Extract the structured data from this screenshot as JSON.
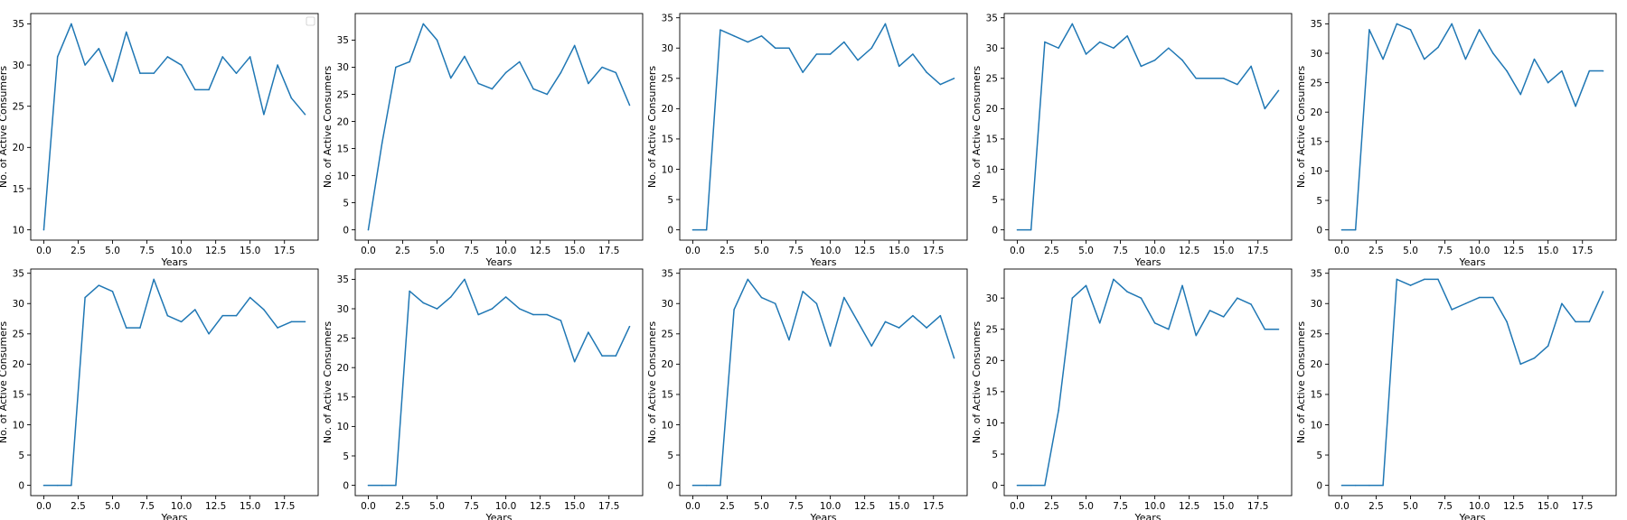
{
  "figure": {
    "line_color": "#1f77b4",
    "axes_color": "#000000",
    "background": "#ffffff"
  },
  "chart_data": [
    {
      "type": "line",
      "xlabel": "Years",
      "ylabel": "No. of Active Consumers",
      "xlim": [
        -0.95,
        19.95
      ],
      "ylim": [
        8.75,
        36.25
      ],
      "xticks": [
        0.0,
        2.5,
        5.0,
        7.5,
        10.0,
        12.5,
        15.0,
        17.5
      ],
      "xtick_labels": [
        "0.0",
        "2.5",
        "5.0",
        "7.5",
        "10.0",
        "12.5",
        "15.0",
        "17.5"
      ],
      "yticks": [
        10,
        15,
        20,
        25,
        30,
        35
      ],
      "ytick_labels": [
        "10",
        "15",
        "20",
        "25",
        "30",
        "35"
      ],
      "legend": {
        "placement": "upper right",
        "entries": []
      },
      "grid": false,
      "x": [
        0,
        1,
        2,
        3,
        4,
        5,
        6,
        7,
        8,
        9,
        10,
        11,
        12,
        13,
        14,
        15,
        16,
        17,
        18,
        19
      ],
      "y": [
        10,
        31,
        35,
        30,
        32,
        28,
        34,
        29,
        29,
        31,
        30,
        27,
        27,
        31,
        29,
        31,
        24,
        30,
        26,
        24
      ]
    },
    {
      "type": "line",
      "xlabel": "Years",
      "ylabel": "No. of Active Consumers",
      "xlim": [
        -0.95,
        19.95
      ],
      "ylim": [
        -1.9,
        39.9
      ],
      "xticks": [
        0.0,
        2.5,
        5.0,
        7.5,
        10.0,
        12.5,
        15.0,
        17.5
      ],
      "xtick_labels": [
        "0.0",
        "2.5",
        "5.0",
        "7.5",
        "10.0",
        "12.5",
        "15.0",
        "17.5"
      ],
      "yticks": [
        0,
        5,
        10,
        15,
        20,
        25,
        30,
        35
      ],
      "ytick_labels": [
        "0",
        "5",
        "10",
        "15",
        "20",
        "25",
        "30",
        "35"
      ],
      "grid": false,
      "x": [
        0,
        1,
        2,
        3,
        4,
        5,
        6,
        7,
        8,
        9,
        10,
        11,
        12,
        13,
        14,
        15,
        16,
        17,
        18,
        19
      ],
      "y": [
        0,
        16,
        30,
        31,
        38,
        35,
        28,
        32,
        27,
        26,
        29,
        31,
        26,
        25,
        29,
        34,
        27,
        30,
        29,
        23
      ]
    },
    {
      "type": "line",
      "xlabel": "Years",
      "ylabel": "No. of Active Consumers",
      "xlim": [
        -0.95,
        19.95
      ],
      "ylim": [
        -1.7,
        35.7
      ],
      "xticks": [
        0.0,
        2.5,
        5.0,
        7.5,
        10.0,
        12.5,
        15.0,
        17.5
      ],
      "xtick_labels": [
        "0.0",
        "2.5",
        "5.0",
        "7.5",
        "10.0",
        "12.5",
        "15.0",
        "17.5"
      ],
      "yticks": [
        0,
        5,
        10,
        15,
        20,
        25,
        30,
        35
      ],
      "ytick_labels": [
        "0",
        "5",
        "10",
        "15",
        "20",
        "25",
        "30",
        "35"
      ],
      "grid": false,
      "x": [
        0,
        1,
        2,
        3,
        4,
        5,
        6,
        7,
        8,
        9,
        10,
        11,
        12,
        13,
        14,
        15,
        16,
        17,
        18,
        19
      ],
      "y": [
        0,
        0,
        33,
        32,
        31,
        32,
        30,
        30,
        26,
        29,
        29,
        31,
        28,
        30,
        34,
        27,
        29,
        26,
        24,
        25
      ]
    },
    {
      "type": "line",
      "xlabel": "Years",
      "ylabel": "No. of Active Consumers",
      "xlim": [
        -0.95,
        19.95
      ],
      "ylim": [
        -1.7,
        35.7
      ],
      "xticks": [
        0.0,
        2.5,
        5.0,
        7.5,
        10.0,
        12.5,
        15.0,
        17.5
      ],
      "xtick_labels": [
        "0.0",
        "2.5",
        "5.0",
        "7.5",
        "10.0",
        "12.5",
        "15.0",
        "17.5"
      ],
      "yticks": [
        0,
        5,
        10,
        15,
        20,
        25,
        30,
        35
      ],
      "ytick_labels": [
        "0",
        "5",
        "10",
        "15",
        "20",
        "25",
        "30",
        "35"
      ],
      "grid": false,
      "x": [
        0,
        1,
        2,
        3,
        4,
        5,
        6,
        7,
        8,
        9,
        10,
        11,
        12,
        13,
        14,
        15,
        16,
        17,
        18,
        19
      ],
      "y": [
        0,
        0,
        31,
        30,
        34,
        29,
        31,
        30,
        32,
        27,
        28,
        30,
        28,
        25,
        25,
        25,
        24,
        27,
        20,
        23
      ]
    },
    {
      "type": "line",
      "xlabel": "Years",
      "ylabel": "No. of Active Consumers",
      "xlim": [
        -0.95,
        19.95
      ],
      "ylim": [
        -1.75,
        36.75
      ],
      "xticks": [
        0.0,
        2.5,
        5.0,
        7.5,
        10.0,
        12.5,
        15.0,
        17.5
      ],
      "xtick_labels": [
        "0.0",
        "2.5",
        "5.0",
        "7.5",
        "10.0",
        "12.5",
        "15.0",
        "17.5"
      ],
      "yticks": [
        0,
        5,
        10,
        15,
        20,
        25,
        30,
        35
      ],
      "ytick_labels": [
        "0",
        "5",
        "10",
        "15",
        "20",
        "25",
        "30",
        "35"
      ],
      "grid": false,
      "x": [
        0,
        1,
        2,
        3,
        4,
        5,
        6,
        7,
        8,
        9,
        10,
        11,
        12,
        13,
        14,
        15,
        16,
        17,
        18,
        19
      ],
      "y": [
        0,
        0,
        34,
        29,
        35,
        34,
        29,
        31,
        35,
        29,
        34,
        30,
        27,
        23,
        29,
        25,
        27,
        21,
        27,
        27
      ]
    },
    {
      "type": "line",
      "xlabel": "Years",
      "ylabel": "No. of Active Consumers",
      "xlim": [
        -0.95,
        19.95
      ],
      "ylim": [
        -1.7,
        35.7
      ],
      "xticks": [
        0.0,
        2.5,
        5.0,
        7.5,
        10.0,
        12.5,
        15.0,
        17.5
      ],
      "xtick_labels": [
        "0.0",
        "2.5",
        "5.0",
        "7.5",
        "10.0",
        "12.5",
        "15.0",
        "17.5"
      ],
      "yticks": [
        0,
        5,
        10,
        15,
        20,
        25,
        30,
        35
      ],
      "ytick_labels": [
        "0",
        "5",
        "10",
        "15",
        "20",
        "25",
        "30",
        "35"
      ],
      "grid": false,
      "x": [
        0,
        1,
        2,
        3,
        4,
        5,
        6,
        7,
        8,
        9,
        10,
        11,
        12,
        13,
        14,
        15,
        16,
        17,
        18,
        19
      ],
      "y": [
        0,
        0,
        0,
        31,
        33,
        32,
        26,
        26,
        34,
        28,
        27,
        29,
        25,
        28,
        28,
        31,
        29,
        26,
        27,
        27
      ]
    },
    {
      "type": "line",
      "xlabel": "Years",
      "ylabel": "No. of Active Consumers",
      "xlim": [
        -0.95,
        19.95
      ],
      "ylim": [
        -1.75,
        36.75
      ],
      "xticks": [
        0.0,
        2.5,
        5.0,
        7.5,
        10.0,
        12.5,
        15.0,
        17.5
      ],
      "xtick_labels": [
        "0.0",
        "2.5",
        "5.0",
        "7.5",
        "10.0",
        "12.5",
        "15.0",
        "17.5"
      ],
      "yticks": [
        0,
        5,
        10,
        15,
        20,
        25,
        30,
        35
      ],
      "ytick_labels": [
        "0",
        "5",
        "10",
        "15",
        "20",
        "25",
        "30",
        "35"
      ],
      "grid": false,
      "x": [
        0,
        1,
        2,
        3,
        4,
        5,
        6,
        7,
        8,
        9,
        10,
        11,
        12,
        13,
        14,
        15,
        16,
        17,
        18,
        19
      ],
      "y": [
        0,
        0,
        0,
        33,
        31,
        30,
        32,
        35,
        29,
        30,
        32,
        30,
        29,
        29,
        28,
        21,
        26,
        22,
        22,
        27
      ]
    },
    {
      "type": "line",
      "xlabel": "Years",
      "ylabel": "No. of Active Consumers",
      "xlim": [
        -0.95,
        19.95
      ],
      "ylim": [
        -1.7,
        35.7
      ],
      "xticks": [
        0.0,
        2.5,
        5.0,
        7.5,
        10.0,
        12.5,
        15.0,
        17.5
      ],
      "xtick_labels": [
        "0.0",
        "2.5",
        "5.0",
        "7.5",
        "10.0",
        "12.5",
        "15.0",
        "17.5"
      ],
      "yticks": [
        0,
        5,
        10,
        15,
        20,
        25,
        30,
        35
      ],
      "ytick_labels": [
        "0",
        "5",
        "10",
        "15",
        "20",
        "25",
        "30",
        "35"
      ],
      "grid": false,
      "x": [
        0,
        1,
        2,
        3,
        4,
        5,
        6,
        7,
        8,
        9,
        10,
        11,
        12,
        13,
        14,
        15,
        16,
        17,
        18,
        19
      ],
      "y": [
        0,
        0,
        0,
        29,
        34,
        31,
        30,
        24,
        32,
        30,
        23,
        31,
        27,
        23,
        27,
        26,
        28,
        26,
        28,
        21
      ]
    },
    {
      "type": "line",
      "xlabel": "Years",
      "ylabel": "No. of Active Consumers",
      "xlim": [
        -0.95,
        19.95
      ],
      "ylim": [
        -1.65,
        34.65
      ],
      "xticks": [
        0.0,
        2.5,
        5.0,
        7.5,
        10.0,
        12.5,
        15.0,
        17.5
      ],
      "xtick_labels": [
        "0.0",
        "2.5",
        "5.0",
        "7.5",
        "10.0",
        "12.5",
        "15.0",
        "17.5"
      ],
      "yticks": [
        0,
        5,
        10,
        15,
        20,
        25,
        30
      ],
      "ytick_labels": [
        "0",
        "5",
        "10",
        "15",
        "20",
        "25",
        "30"
      ],
      "grid": false,
      "x": [
        0,
        1,
        2,
        3,
        4,
        5,
        6,
        7,
        8,
        9,
        10,
        11,
        12,
        13,
        14,
        15,
        16,
        17,
        18,
        19
      ],
      "y": [
        0,
        0,
        0,
        12,
        30,
        32,
        26,
        33,
        31,
        30,
        26,
        25,
        32,
        24,
        28,
        27,
        30,
        29,
        25,
        25
      ]
    },
    {
      "type": "line",
      "xlabel": "Years",
      "ylabel": "No. of Active Consumers",
      "xlim": [
        -0.95,
        19.95
      ],
      "ylim": [
        -1.7,
        35.7
      ],
      "xticks": [
        0.0,
        2.5,
        5.0,
        7.5,
        10.0,
        12.5,
        15.0,
        17.5
      ],
      "xtick_labels": [
        "0.0",
        "2.5",
        "5.0",
        "7.5",
        "10.0",
        "12.5",
        "15.0",
        "17.5"
      ],
      "yticks": [
        0,
        5,
        10,
        15,
        20,
        25,
        30,
        35
      ],
      "ytick_labels": [
        "0",
        "5",
        "10",
        "15",
        "20",
        "25",
        "30",
        "35"
      ],
      "grid": false,
      "x": [
        0,
        1,
        2,
        3,
        4,
        5,
        6,
        7,
        8,
        9,
        10,
        11,
        12,
        13,
        14,
        15,
        16,
        17,
        18,
        19
      ],
      "y": [
        0,
        0,
        0,
        0,
        34,
        33,
        34,
        34,
        29,
        30,
        31,
        31,
        27,
        20,
        21,
        23,
        30,
        27,
        27,
        32
      ]
    }
  ]
}
